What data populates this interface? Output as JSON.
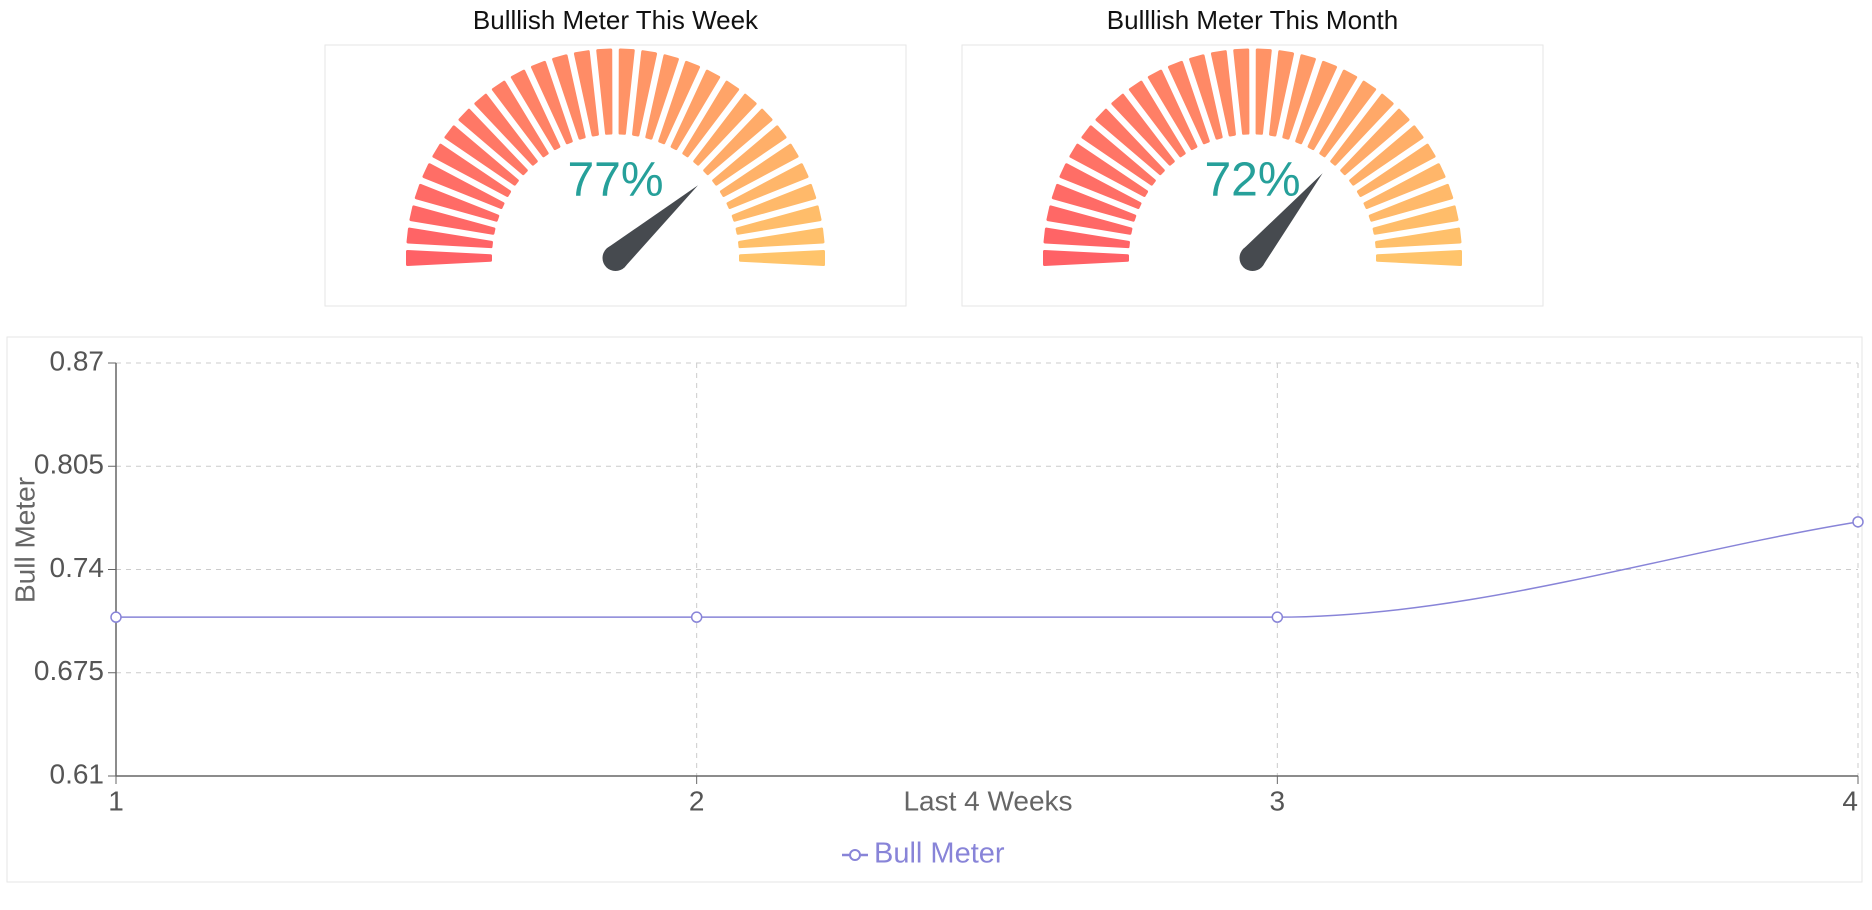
{
  "chart_data": [
    {
      "type": "gauge",
      "title": "Bulllish Meter This Week",
      "values": [
        77
      ],
      "value_labels": [
        "77%"
      ],
      "ylim": [
        0,
        100
      ]
    },
    {
      "type": "gauge",
      "title": "Bulllish Meter This Month",
      "values": [
        72
      ],
      "value_labels": [
        "72%"
      ],
      "ylim": [
        0,
        100
      ]
    },
    {
      "type": "line",
      "x_label": "Last 4 Weeks",
      "y_label": "Bull Meter",
      "x": [
        1,
        2,
        3,
        4
      ],
      "xlim": [
        1,
        4
      ],
      "xticks": [
        1,
        2,
        3,
        4
      ],
      "ylim": [
        0.61,
        0.87
      ],
      "yticks": [
        0.61,
        0.675,
        0.74,
        0.805,
        0.87
      ],
      "grid": true,
      "series": [
        {
          "name": "Bull Meter",
          "color": "#8884d8",
          "values": [
            0.71,
            0.71,
            0.71,
            0.77
          ]
        }
      ]
    }
  ]
}
